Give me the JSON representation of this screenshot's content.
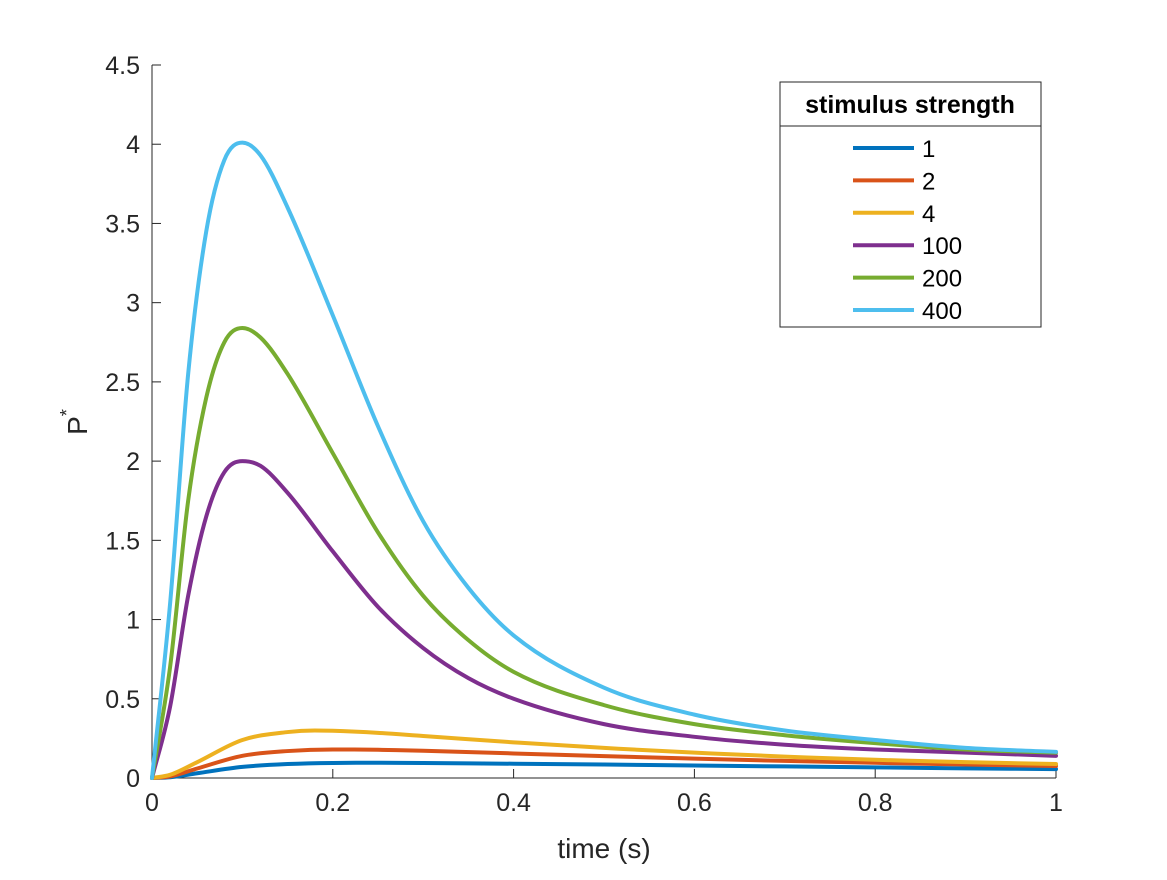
{
  "chart_data": {
    "type": "line",
    "xlabel": "time (s)",
    "ylabel": "P",
    "ylabel_superscript": "*",
    "xlim": [
      0,
      1
    ],
    "ylim": [
      0,
      4.5
    ],
    "xticks": [
      0,
      0.2,
      0.4,
      0.6,
      0.8,
      1
    ],
    "xtick_labels": [
      "0",
      "0.2",
      "0.4",
      "0.6",
      "0.8",
      "1"
    ],
    "yticks": [
      0,
      0.5,
      1,
      1.5,
      2,
      2.5,
      3,
      3.5,
      4,
      4.5
    ],
    "ytick_labels": [
      "0",
      "0.5",
      "1",
      "1.5",
      "2",
      "2.5",
      "3",
      "3.5",
      "4",
      "4.5"
    ],
    "grid": false,
    "legend": {
      "title": "stimulus strength",
      "placement": "top-right"
    },
    "series": [
      {
        "name": "1",
        "color": "#0072BD",
        "x": [
          0,
          0.02,
          0.05,
          0.1,
          0.15,
          0.2,
          0.25,
          0.3,
          0.4,
          0.5,
          0.6,
          0.7,
          0.8,
          0.9,
          1.0
        ],
        "y": [
          0,
          0.005,
          0.03,
          0.07,
          0.088,
          0.095,
          0.096,
          0.095,
          0.09,
          0.085,
          0.079,
          0.073,
          0.067,
          0.061,
          0.056
        ]
      },
      {
        "name": "2",
        "color": "#D95319",
        "x": [
          0,
          0.02,
          0.05,
          0.1,
          0.15,
          0.2,
          0.25,
          0.3,
          0.4,
          0.5,
          0.6,
          0.7,
          0.8,
          0.9,
          1.0
        ],
        "y": [
          0,
          0.01,
          0.06,
          0.14,
          0.17,
          0.18,
          0.178,
          0.172,
          0.155,
          0.138,
          0.122,
          0.108,
          0.096,
          0.085,
          0.076
        ]
      },
      {
        "name": "4",
        "color": "#EDB120",
        "x": [
          0,
          0.02,
          0.05,
          0.1,
          0.15,
          0.18,
          0.2,
          0.25,
          0.3,
          0.4,
          0.5,
          0.6,
          0.7,
          0.8,
          0.9,
          1.0
        ],
        "y": [
          0,
          0.02,
          0.1,
          0.24,
          0.29,
          0.3,
          0.298,
          0.285,
          0.265,
          0.225,
          0.19,
          0.16,
          0.135,
          0.115,
          0.1,
          0.088
        ]
      },
      {
        "name": "100",
        "color": "#7E2F8E",
        "x": [
          0,
          0.02,
          0.04,
          0.06,
          0.08,
          0.1,
          0.12,
          0.15,
          0.2,
          0.25,
          0.3,
          0.35,
          0.4,
          0.5,
          0.6,
          0.7,
          0.8,
          0.9,
          1.0
        ],
        "y": [
          0,
          0.45,
          1.15,
          1.65,
          1.93,
          2.0,
          1.97,
          1.8,
          1.43,
          1.08,
          0.82,
          0.63,
          0.5,
          0.34,
          0.26,
          0.21,
          0.18,
          0.16,
          0.14
        ]
      },
      {
        "name": "200",
        "color": "#77AC30",
        "x": [
          0,
          0.02,
          0.04,
          0.06,
          0.08,
          0.1,
          0.12,
          0.15,
          0.2,
          0.25,
          0.3,
          0.35,
          0.4,
          0.5,
          0.6,
          0.7,
          0.8,
          0.9,
          1.0
        ],
        "y": [
          0,
          0.7,
          1.75,
          2.4,
          2.75,
          2.84,
          2.78,
          2.55,
          2.05,
          1.55,
          1.15,
          0.87,
          0.67,
          0.46,
          0.34,
          0.27,
          0.22,
          0.18,
          0.16
        ]
      },
      {
        "name": "400",
        "color": "#4DBEEE",
        "x": [
          0,
          0.02,
          0.04,
          0.06,
          0.08,
          0.1,
          0.12,
          0.15,
          0.2,
          0.25,
          0.3,
          0.35,
          0.4,
          0.5,
          0.6,
          0.7,
          0.8,
          0.9,
          1.0
        ],
        "y": [
          0,
          1.1,
          2.55,
          3.45,
          3.9,
          4.01,
          3.93,
          3.6,
          2.92,
          2.22,
          1.62,
          1.2,
          0.9,
          0.57,
          0.4,
          0.3,
          0.24,
          0.19,
          0.165
        ]
      }
    ]
  }
}
